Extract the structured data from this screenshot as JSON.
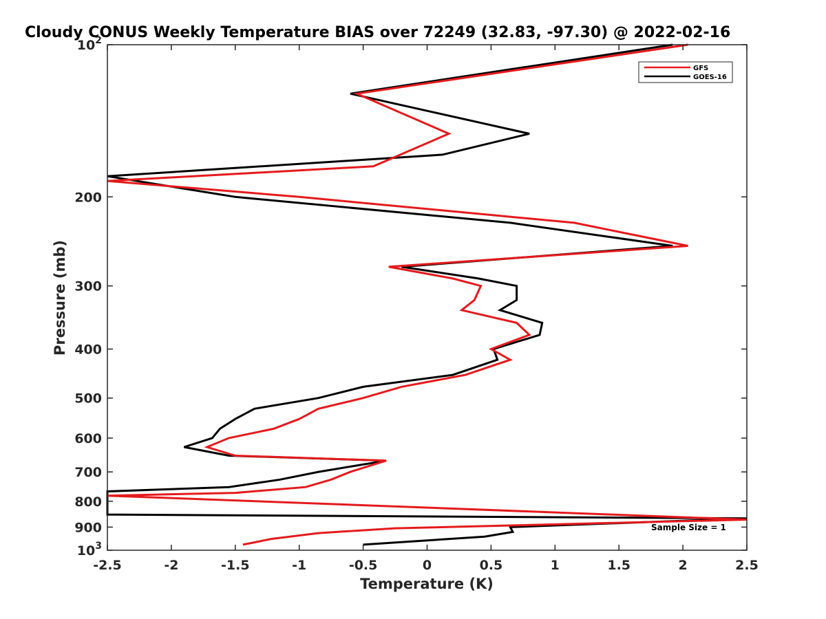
{
  "chart_data": {
    "type": "line",
    "title": "Cloudy CONUS Weekly Temperature BIAS over 72249 (32.83, -97.30) @ 2022-02-16",
    "xlabel": "Temperature (K)",
    "ylabel": "Pressure (mb)",
    "xlim": [
      -2.5,
      2.5
    ],
    "ylim": [
      100,
      1000
    ],
    "y_scale": "log",
    "y_reversed": true,
    "grid": false,
    "legend_position": "top-right",
    "x_ticks": [
      "-2.5",
      "-2",
      "-1.5",
      "-1",
      "-0.5",
      "0",
      "0.5",
      "1",
      "1.5",
      "2",
      "2.5"
    ],
    "x_tick_values": [
      -2.5,
      -2,
      -1.5,
      -1,
      -0.5,
      0,
      0.5,
      1,
      1.5,
      2,
      2.5
    ],
    "y_ticks": [
      {
        "value": 100,
        "base": "10",
        "exp": "2"
      },
      {
        "value": 200,
        "base": "200",
        "exp": ""
      },
      {
        "value": 300,
        "base": "300",
        "exp": ""
      },
      {
        "value": 400,
        "base": "400",
        "exp": ""
      },
      {
        "value": 500,
        "base": "500",
        "exp": ""
      },
      {
        "value": 600,
        "base": "600",
        "exp": ""
      },
      {
        "value": 700,
        "base": "700",
        "exp": ""
      },
      {
        "value": 800,
        "base": "800",
        "exp": ""
      },
      {
        "value": 900,
        "base": "900",
        "exp": ""
      },
      {
        "value": 1000,
        "base": "10",
        "exp": "3"
      }
    ],
    "annotation": "Sample Size = 1",
    "series": [
      {
        "name": "GFS",
        "color": "#e41a1c",
        "points": [
          [
            2.04,
            100
          ],
          [
            -0.55,
            125
          ],
          [
            0.17,
            150
          ],
          [
            -0.42,
            174
          ],
          [
            -2.5,
            186
          ],
          [
            -2.5,
            186
          ],
          [
            -1.0,
            200
          ],
          [
            1.15,
            225
          ],
          [
            2.04,
            250
          ],
          [
            -0.3,
            275
          ],
          [
            0.2,
            290
          ],
          [
            0.42,
            300
          ],
          [
            0.37,
            320
          ],
          [
            0.27,
            335
          ],
          [
            0.7,
            355
          ],
          [
            0.8,
            375
          ],
          [
            0.5,
            400
          ],
          [
            0.65,
            420
          ],
          [
            0.3,
            450
          ],
          [
            -0.2,
            475
          ],
          [
            -0.5,
            500
          ],
          [
            -0.85,
            525
          ],
          [
            -1.0,
            550
          ],
          [
            -1.2,
            575
          ],
          [
            -1.55,
            600
          ],
          [
            -1.72,
            625
          ],
          [
            -1.5,
            650
          ],
          [
            -0.32,
            665
          ],
          [
            -0.6,
            700
          ],
          [
            -0.75,
            725
          ],
          [
            -0.95,
            750
          ],
          [
            -1.5,
            770
          ],
          [
            -2.5,
            780
          ],
          [
            2.5,
            870
          ],
          [
            -0.25,
            905
          ],
          [
            -0.85,
            925
          ],
          [
            -1.22,
            950
          ],
          [
            -1.35,
            965
          ],
          [
            -1.44,
            975
          ]
        ]
      },
      {
        "name": "GOES-16",
        "color": "#000000",
        "points": [
          [
            1.92,
            100
          ],
          [
            -0.6,
            125
          ],
          [
            0.8,
            150
          ],
          [
            0.12,
            165
          ],
          [
            -2.5,
            182
          ],
          [
            -2.5,
            182
          ],
          [
            -1.5,
            200
          ],
          [
            0.65,
            225
          ],
          [
            1.92,
            250
          ],
          [
            -0.2,
            275
          ],
          [
            0.4,
            290
          ],
          [
            0.7,
            300
          ],
          [
            0.7,
            320
          ],
          [
            0.57,
            335
          ],
          [
            0.9,
            355
          ],
          [
            0.88,
            375
          ],
          [
            0.52,
            400
          ],
          [
            0.55,
            420
          ],
          [
            0.2,
            450
          ],
          [
            -0.5,
            475
          ],
          [
            -0.85,
            500
          ],
          [
            -1.35,
            525
          ],
          [
            -1.5,
            550
          ],
          [
            -1.62,
            575
          ],
          [
            -1.68,
            600
          ],
          [
            -1.9,
            625
          ],
          [
            -1.55,
            650
          ],
          [
            -0.32,
            665
          ],
          [
            -0.85,
            700
          ],
          [
            -1.15,
            725
          ],
          [
            -1.55,
            750
          ],
          [
            -2.5,
            765
          ],
          [
            -2.5,
            850
          ],
          [
            2.5,
            865
          ],
          [
            0.65,
            900
          ],
          [
            0.67,
            920
          ],
          [
            0.45,
            940
          ],
          [
            -0.5,
            975
          ]
        ]
      }
    ]
  }
}
